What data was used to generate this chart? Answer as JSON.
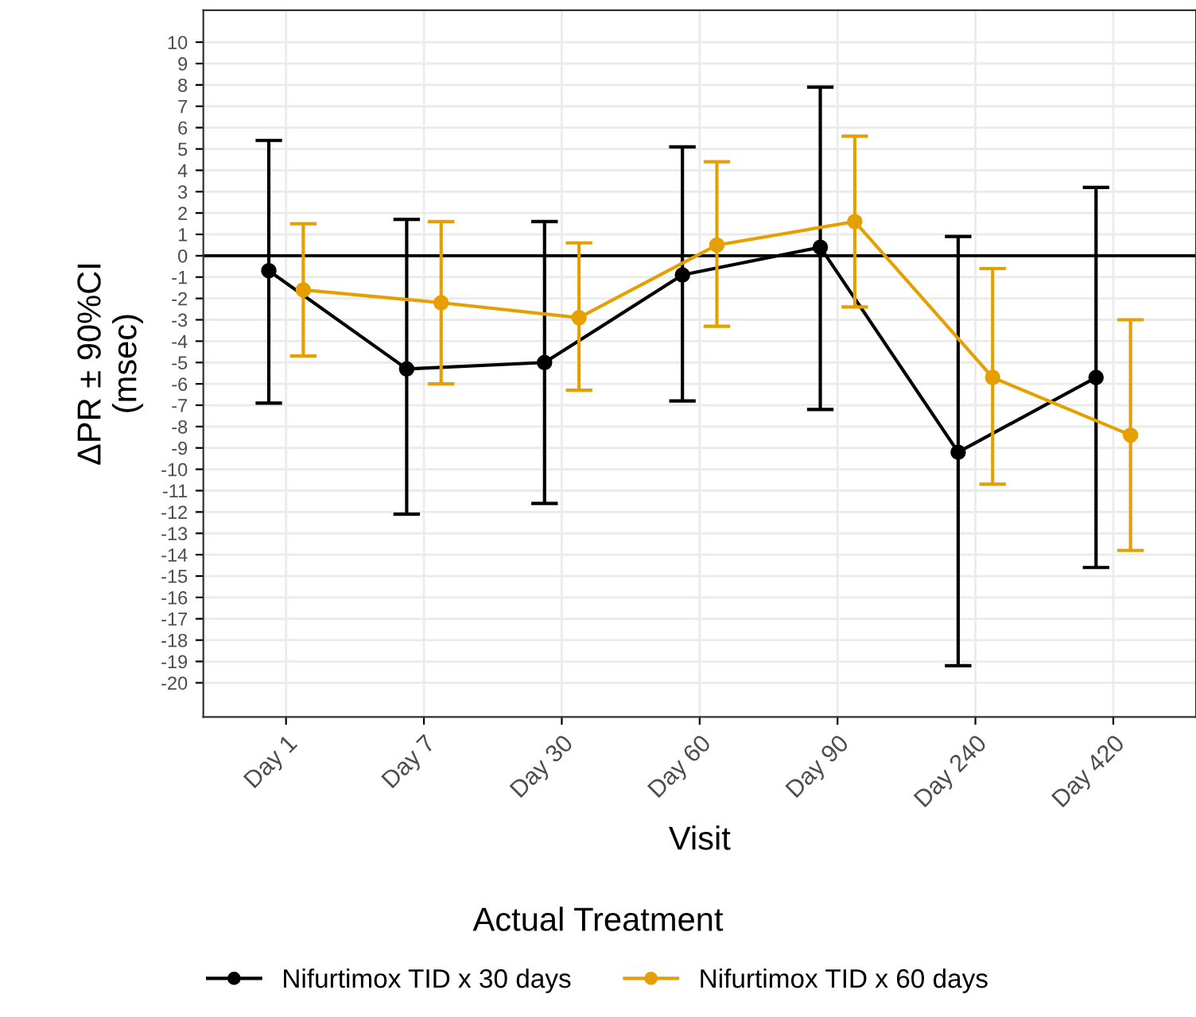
{
  "chart_data": {
    "type": "line",
    "xlabel": "Visit",
    "ylabel": "ΔPR ± 90%CI\n(msec)",
    "legend_title": "Actual Treatment",
    "categories": [
      "Day 1",
      "Day 7",
      "Day 30",
      "Day 60",
      "Day 90",
      "Day 240",
      "Day 420"
    ],
    "series": [
      {
        "name": "Nifurtimox TID x 30 days",
        "color": "#000000",
        "values": [
          -0.7,
          -5.3,
          -5.0,
          -0.9,
          0.4,
          -9.2,
          -5.7
        ],
        "errors": [
          [
            -6.9,
            5.4
          ],
          [
            -12.1,
            1.7
          ],
          [
            -11.6,
            1.6
          ],
          [
            -6.8,
            5.1
          ],
          [
            -7.2,
            7.9
          ],
          [
            -19.2,
            0.9
          ],
          [
            -14.6,
            3.2
          ]
        ]
      },
      {
        "name": "Nifurtimox TID x 60 days",
        "color": "#e69f00",
        "values": [
          -1.6,
          -2.2,
          -2.9,
          0.5,
          1.6,
          -5.7,
          -8.4
        ],
        "errors": [
          [
            -4.7,
            1.5
          ],
          [
            -6.0,
            1.6
          ],
          [
            -6.3,
            0.6
          ],
          [
            -3.3,
            4.4
          ],
          [
            -2.4,
            5.6
          ],
          [
            -10.7,
            -0.6
          ],
          [
            -13.8,
            -3.0
          ]
        ]
      }
    ],
    "ylim": [
      -21.6,
      11.5
    ],
    "yticks": [
      -20,
      -19,
      -18,
      -17,
      -16,
      -15,
      -14,
      -13,
      -12,
      -11,
      -10,
      -9,
      -8,
      -7,
      -6,
      -5,
      -4,
      -3,
      -2,
      -1,
      0,
      1,
      2,
      3,
      4,
      5,
      6,
      7,
      8,
      9,
      10
    ],
    "ref_lines": [
      {
        "axis": "y",
        "value": 0,
        "color": "#000000"
      }
    ],
    "grid": true,
    "legend": "bottom",
    "marker": "circle",
    "line_style": "solid"
  }
}
